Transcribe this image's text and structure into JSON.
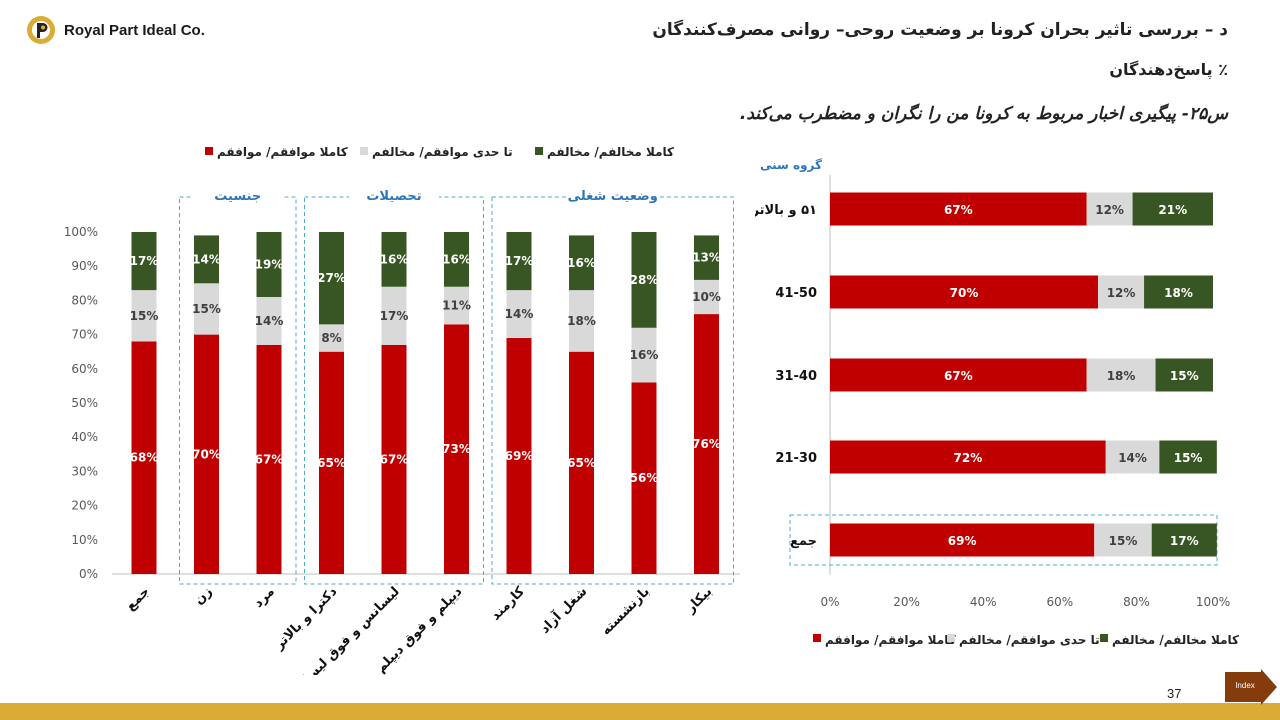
{
  "brand": {
    "name": "Royal Part Ideal Co.",
    "logo_icon": "royal-part-logo-icon"
  },
  "header": {
    "title": "د – بررسی تاثیر بحران کرونا بر وضعیت روحی– روانی مصرف‌کنندگان",
    "subtitle": "٪ پاسخ‌دهندگان",
    "question": "س۲۵- پیگیری اخبار مربوط به کرونا من را نگران و مضطرب می‌کند."
  },
  "footer": {
    "page_number": "37",
    "index_label": "Index"
  },
  "colors": {
    "agree": "#c00000",
    "neutral": "#d9d9d9",
    "disagree": "#375623",
    "group_border": "#4bacc6",
    "group_label": "#2e75b6",
    "bar_gold": "#d9ad33",
    "index_fill": "#843c0c"
  },
  "legend": [
    {
      "key": "agree",
      "label": "کاملا موافقم/ موافقم"
    },
    {
      "key": "neutral",
      "label": "تا حدی موافقم/ مخالفم"
    },
    {
      "key": "disagree",
      "label": "کاملا مخالفم/ مخالفم"
    }
  ],
  "chart_data": [
    {
      "type": "bar",
      "stacked": true,
      "orientation": "vertical",
      "categories": [
        "جمع",
        "زن",
        "مرد",
        "دکترا و بالاتر",
        "لیسانس و فوق لیسانس",
        "دیپلم و فوق دیپلم",
        "کارمند",
        "شغل آزاد",
        "بازنشسته",
        "بیکار"
      ],
      "groups": [
        {
          "label": "جنسیت",
          "categories": [
            "زن",
            "مرد"
          ]
        },
        {
          "label": "تحصیلات",
          "categories": [
            "دکترا و بالاتر",
            "لیسانس و فوق لیسانس",
            "دیپلم و فوق دیپلم"
          ]
        },
        {
          "label": "وضعیت شغلی",
          "categories": [
            "کارمند",
            "شغل آزاد",
            "بازنشسته",
            "بیکار"
          ]
        }
      ],
      "series": [
        {
          "name": "کاملا موافقم/ موافقم",
          "values": [
            68,
            70,
            67,
            65,
            67,
            73,
            69,
            65,
            56,
            76
          ]
        },
        {
          "name": "تا حدی موافقم/ مخالفم",
          "values": [
            15,
            15,
            14,
            8,
            17,
            11,
            14,
            18,
            16,
            10
          ]
        },
        {
          "name": "کاملا مخالفم/ مخالفم",
          "values": [
            17,
            14,
            19,
            27,
            16,
            16,
            17,
            16,
            28,
            13
          ]
        }
      ],
      "ylim": [
        0,
        100
      ],
      "yticks": [
        "0%",
        "10%",
        "20%",
        "30%",
        "40%",
        "50%",
        "60%",
        "70%",
        "80%",
        "90%",
        "100%"
      ],
      "legend_position": "top"
    },
    {
      "type": "bar",
      "stacked": true,
      "orientation": "horizontal",
      "axis_title": "گروه سنی",
      "categories": [
        "۵۱ و بالاتر",
        "41-50",
        "31-40",
        "21-30",
        "جمع"
      ],
      "series": [
        {
          "name": "کاملا موافقم/ موافقم",
          "values": [
            67,
            70,
            67,
            72,
            69
          ]
        },
        {
          "name": "تا حدی موافقم/ مخالفم",
          "values": [
            12,
            12,
            18,
            14,
            15
          ]
        },
        {
          "name": "کاملا مخالفم/ مخالفم",
          "values": [
            21,
            18,
            15,
            15,
            17
          ]
        }
      ],
      "xlim": [
        0,
        100
      ],
      "xticks": [
        "0%",
        "20%",
        "40%",
        "60%",
        "80%",
        "100%"
      ],
      "legend_position": "bottom"
    }
  ]
}
